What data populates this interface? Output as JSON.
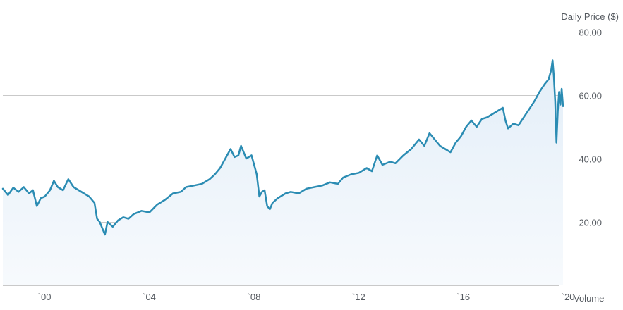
{
  "chart_data": {
    "type": "line",
    "title": "",
    "ylabel": "Daily Price ($)",
    "xlabel": "Volume",
    "xlim": [
      1999.0,
      2020.4
    ],
    "ylim": [
      0,
      80
    ],
    "y_ticks": [
      {
        "value": 80,
        "label": "80.00"
      },
      {
        "value": 60,
        "label": "60.00"
      },
      {
        "value": 40,
        "label": "40.00"
      },
      {
        "value": 20,
        "label": "20.00"
      }
    ],
    "x_ticks": [
      {
        "value": 2000,
        "label": "`00"
      },
      {
        "value": 2004,
        "label": "`04"
      },
      {
        "value": 2008,
        "label": "`08"
      },
      {
        "value": 2012,
        "label": "`12"
      },
      {
        "value": 2016,
        "label": "`16"
      },
      {
        "value": 2020,
        "label": "`20"
      }
    ],
    "grid": true,
    "colors": {
      "line": "#2b8cb3",
      "fill_top": "#e3eef8",
      "fill_bottom": "#f7fafd",
      "grid": "#c9c9c9"
    },
    "series": [
      {
        "values": [
          [
            1999.0,
            30.5
          ],
          [
            1999.2,
            28.5
          ],
          [
            1999.4,
            30.8
          ],
          [
            1999.6,
            29.5
          ],
          [
            1999.8,
            31.0
          ],
          [
            2000.0,
            29.0
          ],
          [
            2000.15,
            30.0
          ],
          [
            2000.3,
            25.0
          ],
          [
            2000.45,
            27.5
          ],
          [
            2000.6,
            28.0
          ],
          [
            2000.8,
            30.0
          ],
          [
            2000.95,
            33.0
          ],
          [
            2001.1,
            31.0
          ],
          [
            2001.3,
            30.0
          ],
          [
            2001.5,
            33.5
          ],
          [
            2001.7,
            31.0
          ],
          [
            2001.9,
            30.0
          ],
          [
            2002.1,
            29.0
          ],
          [
            2002.3,
            28.0
          ],
          [
            2002.5,
            26.0
          ],
          [
            2002.6,
            21.0
          ],
          [
            2002.7,
            20.0
          ],
          [
            2002.8,
            18.0
          ],
          [
            2002.9,
            16.0
          ],
          [
            2003.0,
            20.0
          ],
          [
            2003.2,
            18.5
          ],
          [
            2003.4,
            20.5
          ],
          [
            2003.6,
            21.5
          ],
          [
            2003.8,
            21.0
          ],
          [
            2004.0,
            22.5
          ],
          [
            2004.3,
            23.5
          ],
          [
            2004.6,
            23.0
          ],
          [
            2004.9,
            25.5
          ],
          [
            2005.2,
            27.0
          ],
          [
            2005.5,
            29.0
          ],
          [
            2005.8,
            29.5
          ],
          [
            2006.0,
            31.0
          ],
          [
            2006.3,
            31.5
          ],
          [
            2006.6,
            32.0
          ],
          [
            2006.9,
            33.5
          ],
          [
            2007.1,
            35.0
          ],
          [
            2007.3,
            37.0
          ],
          [
            2007.5,
            40.0
          ],
          [
            2007.7,
            43.0
          ],
          [
            2007.85,
            40.5
          ],
          [
            2008.0,
            41.0
          ],
          [
            2008.1,
            44.0
          ],
          [
            2008.3,
            40.0
          ],
          [
            2008.5,
            41.0
          ],
          [
            2008.6,
            38.0
          ],
          [
            2008.7,
            35.0
          ],
          [
            2008.8,
            28.0
          ],
          [
            2008.9,
            29.5
          ],
          [
            2009.0,
            30.0
          ],
          [
            2009.1,
            25.0
          ],
          [
            2009.2,
            24.0
          ],
          [
            2009.3,
            26.0
          ],
          [
            2009.5,
            27.5
          ],
          [
            2009.8,
            29.0
          ],
          [
            2010.0,
            29.5
          ],
          [
            2010.3,
            29.0
          ],
          [
            2010.6,
            30.5
          ],
          [
            2010.9,
            31.0
          ],
          [
            2011.2,
            31.5
          ],
          [
            2011.5,
            32.5
          ],
          [
            2011.8,
            32.0
          ],
          [
            2012.0,
            34.0
          ],
          [
            2012.3,
            35.0
          ],
          [
            2012.6,
            35.5
          ],
          [
            2012.9,
            37.0
          ],
          [
            2013.1,
            36.0
          ],
          [
            2013.3,
            41.0
          ],
          [
            2013.5,
            38.0
          ],
          [
            2013.8,
            39.0
          ],
          [
            2014.0,
            38.5
          ],
          [
            2014.3,
            41.0
          ],
          [
            2014.6,
            43.0
          ],
          [
            2014.9,
            46.0
          ],
          [
            2015.1,
            44.0
          ],
          [
            2015.3,
            48.0
          ],
          [
            2015.5,
            46.0
          ],
          [
            2015.7,
            44.0
          ],
          [
            2015.9,
            43.0
          ],
          [
            2016.1,
            42.0
          ],
          [
            2016.3,
            45.0
          ],
          [
            2016.5,
            47.0
          ],
          [
            2016.7,
            50.0
          ],
          [
            2016.9,
            52.0
          ],
          [
            2017.1,
            50.0
          ],
          [
            2017.3,
            52.5
          ],
          [
            2017.5,
            53.0
          ],
          [
            2017.7,
            54.0
          ],
          [
            2017.9,
            55.0
          ],
          [
            2018.1,
            56.0
          ],
          [
            2018.2,
            52.0
          ],
          [
            2018.3,
            49.5
          ],
          [
            2018.5,
            51.0
          ],
          [
            2018.7,
            50.5
          ],
          [
            2018.9,
            53.0
          ],
          [
            2019.1,
            55.5
          ],
          [
            2019.3,
            58.0
          ],
          [
            2019.5,
            61.0
          ],
          [
            2019.7,
            63.5
          ],
          [
            2019.85,
            65.0
          ],
          [
            2019.95,
            68.0
          ],
          [
            2020.0,
            71.0
          ],
          [
            2020.05,
            66.0
          ],
          [
            2020.1,
            58.0
          ],
          [
            2020.15,
            45.0
          ],
          [
            2020.2,
            55.0
          ],
          [
            2020.25,
            61.0
          ],
          [
            2020.3,
            57.0
          ],
          [
            2020.35,
            62.0
          ],
          [
            2020.4,
            56.5
          ]
        ]
      }
    ]
  }
}
